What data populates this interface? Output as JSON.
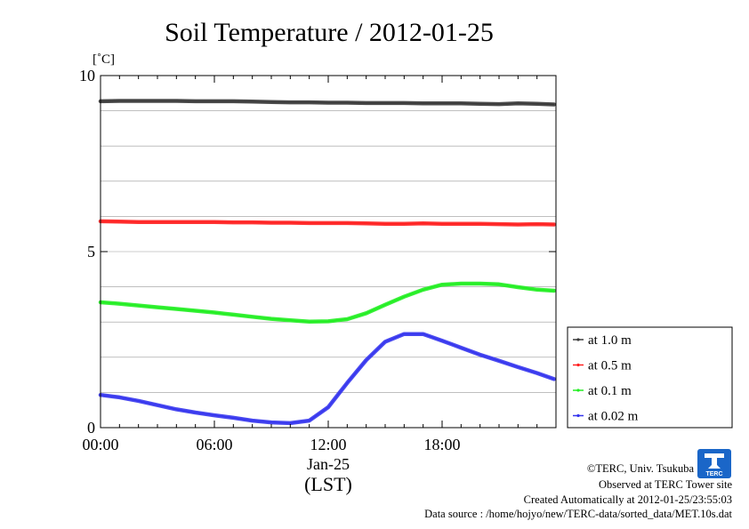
{
  "chart_data": {
    "type": "line",
    "title": "Soil Temperature / 2012-01-25",
    "y_unit": "[˚C]",
    "ylim": [
      0,
      10
    ],
    "y_ticks": [
      {
        "value": 0,
        "label": "0"
      },
      {
        "value": 5,
        "label": "5"
      },
      {
        "value": 10,
        "label": "10"
      }
    ],
    "xlim": [
      0,
      24
    ],
    "x_ticks": [
      {
        "value": 0,
        "label": "00:00"
      },
      {
        "value": 6,
        "label": "06:00"
      },
      {
        "value": 12,
        "label": "12:00"
      },
      {
        "value": 18,
        "label": "18:00"
      }
    ],
    "x_sublabel": "Jan-25",
    "x_axis_label": "(LST)",
    "grid": true,
    "legend_position": "right",
    "series": [
      {
        "name": "at 1.0 m",
        "color": "#3a3a3a",
        "x": [
          0,
          1,
          2,
          3,
          4,
          5,
          6,
          7,
          8,
          9,
          10,
          11,
          12,
          13,
          14,
          15,
          16,
          17,
          18,
          19,
          20,
          21,
          22,
          23,
          23.9
        ],
        "y": [
          9.27,
          9.28,
          9.28,
          9.28,
          9.28,
          9.27,
          9.27,
          9.27,
          9.26,
          9.25,
          9.24,
          9.24,
          9.23,
          9.23,
          9.22,
          9.22,
          9.22,
          9.21,
          9.21,
          9.21,
          9.2,
          9.19,
          9.21,
          9.2,
          9.18
        ]
      },
      {
        "name": "at 0.5 m",
        "color": "#ff2020",
        "x": [
          0,
          1,
          2,
          3,
          4,
          5,
          6,
          7,
          8,
          9,
          10,
          11,
          12,
          13,
          14,
          15,
          16,
          17,
          18,
          19,
          20,
          21,
          22,
          23,
          23.9
        ],
        "y": [
          5.86,
          5.85,
          5.84,
          5.84,
          5.84,
          5.84,
          5.84,
          5.83,
          5.83,
          5.82,
          5.82,
          5.81,
          5.81,
          5.81,
          5.8,
          5.79,
          5.79,
          5.8,
          5.79,
          5.79,
          5.79,
          5.78,
          5.77,
          5.78,
          5.77
        ]
      },
      {
        "name": "at 0.1 m",
        "color": "#22ee22",
        "x": [
          0,
          1,
          2,
          3,
          4,
          5,
          6,
          7,
          8,
          9,
          10,
          11,
          12,
          13,
          14,
          15,
          16,
          17,
          18,
          19,
          20,
          21,
          22,
          23,
          23.9
        ],
        "y": [
          3.56,
          3.52,
          3.47,
          3.42,
          3.37,
          3.32,
          3.27,
          3.21,
          3.15,
          3.09,
          3.05,
          3.01,
          3.02,
          3.08,
          3.25,
          3.49,
          3.72,
          3.92,
          4.06,
          4.09,
          4.09,
          4.07,
          3.99,
          3.92,
          3.89
        ]
      },
      {
        "name": "at 0.02 m",
        "color": "#3535ee",
        "x": [
          0,
          1,
          2,
          3,
          4,
          5,
          6,
          7,
          8,
          9,
          10,
          11,
          12,
          13,
          14,
          15,
          16,
          17,
          18,
          19,
          20,
          21,
          22,
          23,
          23.9
        ],
        "y": [
          0.93,
          0.86,
          0.76,
          0.64,
          0.52,
          0.43,
          0.35,
          0.28,
          0.2,
          0.15,
          0.13,
          0.2,
          0.58,
          1.27,
          1.92,
          2.44,
          2.66,
          2.66,
          2.47,
          2.27,
          2.07,
          1.9,
          1.72,
          1.55,
          1.38
        ]
      }
    ]
  },
  "credits": {
    "copyright": "©TERC, Univ. Tsukuba",
    "observed": "Observed at TERC Tower site",
    "created": "Created Automatically at 2012-01-25/23:55:03",
    "source": "Data source : /home/hojyo/new/TERC-data/sorted_data/MET.10s.dat"
  },
  "logo": {
    "text": "TERC",
    "color": "#1a66c8"
  }
}
